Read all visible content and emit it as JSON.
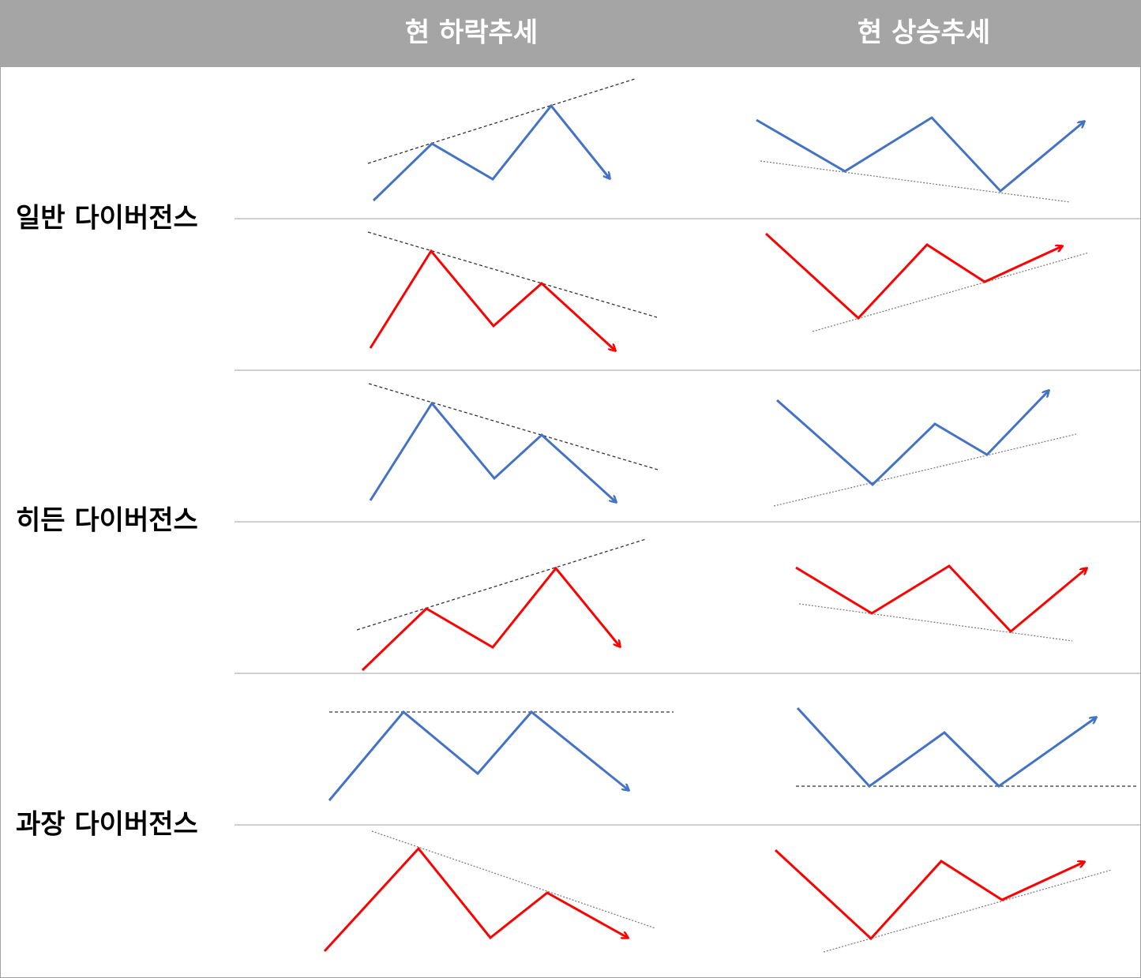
{
  "header": {
    "columns": [
      "현 하락추세",
      "현 상승추세"
    ]
  },
  "rows": [
    "일반 다이버전스",
    "히든 다이버전스",
    "과장 다이버전스"
  ]
}
